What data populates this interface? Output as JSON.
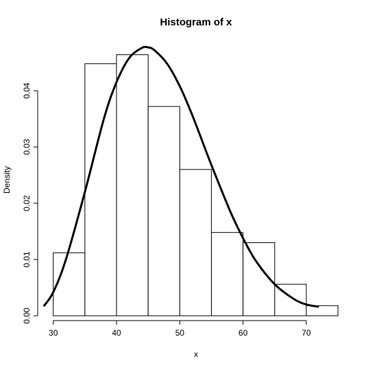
{
  "chart_data": {
    "type": "bar",
    "title": "Histogram of x",
    "xlabel": "x",
    "ylabel": "Density",
    "bins": [
      {
        "from": 30,
        "to": 35,
        "density": 0.0112
      },
      {
        "from": 35,
        "to": 40,
        "density": 0.0448
      },
      {
        "from": 40,
        "to": 45,
        "density": 0.0464
      },
      {
        "from": 45,
        "to": 50,
        "density": 0.0372
      },
      {
        "from": 50,
        "to": 55,
        "density": 0.026
      },
      {
        "from": 55,
        "to": 60,
        "density": 0.0148
      },
      {
        "from": 60,
        "to": 65,
        "density": 0.013
      },
      {
        "from": 65,
        "to": 70,
        "density": 0.0056
      },
      {
        "from": 70,
        "to": 75,
        "density": 0.0018
      }
    ],
    "curve": [
      [
        28.5,
        0.0017
      ],
      [
        30,
        0.0042
      ],
      [
        32,
        0.01
      ],
      [
        35,
        0.022
      ],
      [
        38,
        0.035
      ],
      [
        40,
        0.0415
      ],
      [
        42,
        0.0458
      ],
      [
        44,
        0.0476
      ],
      [
        45,
        0.0477
      ],
      [
        46,
        0.0472
      ],
      [
        48,
        0.0448
      ],
      [
        50,
        0.0408
      ],
      [
        52,
        0.0356
      ],
      [
        55,
        0.0268
      ],
      [
        58,
        0.0185
      ],
      [
        60,
        0.0138
      ],
      [
        62,
        0.0098
      ],
      [
        65,
        0.0056
      ],
      [
        68,
        0.003
      ],
      [
        70,
        0.002
      ],
      [
        72,
        0.0016
      ]
    ],
    "xlim": [
      28.3,
      76.6
    ],
    "ylim": [
      0,
      0.0488
    ],
    "xticks": [
      30,
      40,
      50,
      60,
      70
    ],
    "yticks": [
      0,
      0.01,
      0.02,
      0.03,
      0.04
    ],
    "xtick_labels": [
      "30",
      "40",
      "50",
      "60",
      "70"
    ],
    "ytick_labels": [
      "0.00",
      "0.01",
      "0.02",
      "0.03",
      "0.04"
    ],
    "grid": false,
    "colors": {
      "bar_fill": "#ffffff",
      "bar_stroke": "#000000",
      "curve": "#000000"
    }
  }
}
